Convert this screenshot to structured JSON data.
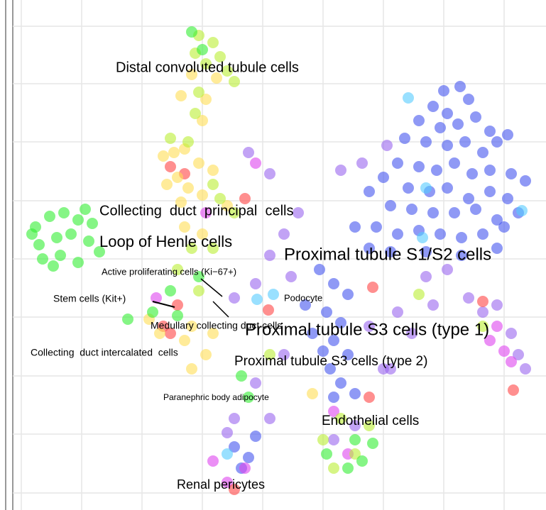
{
  "chart_data": {
    "type": "scatter",
    "xlim": [
      18,
      765
    ],
    "ylim": [
      716,
      3
    ],
    "xticks": [
      30,
      115,
      200,
      285,
      370,
      455,
      540,
      625,
      710
    ],
    "yticks": [
      37,
      118,
      200,
      283,
      365,
      447,
      530,
      612,
      695
    ],
    "grid": true,
    "series": [
      {
        "color": "#4455ee",
        "x": [
          625,
          648,
          610,
          630,
          660,
          590,
          620,
          645,
          670,
          690,
          700,
          715,
          570,
          600,
          630,
          655,
          680,
          560,
          590,
          615,
          640,
          665,
          690,
          720,
          740,
          540,
          575,
          605,
          630,
          660,
          690,
          715,
          520,
          550,
          580,
          610,
          640,
          670,
          700,
          730,
          500,
          530,
          560,
          590,
          620,
          650,
          680,
          710,
          520,
          550,
          600,
          650,
          700,
          450,
          470,
          490,
          430,
          460,
          480,
          440,
          470,
          455,
          490,
          465,
          480,
          500,
          470,
          350,
          340,
          330,
          360
        ],
        "y": [
          128,
          122,
          150,
          160,
          140,
          170,
          180,
          175,
          165,
          185,
          200,
          190,
          195,
          200,
          205,
          200,
          215,
          230,
          235,
          240,
          230,
          245,
          240,
          245,
          255,
          250,
          265,
          270,
          265,
          280,
          270,
          280,
          270,
          290,
          295,
          300,
          300,
          295,
          310,
          300,
          320,
          320,
          330,
          325,
          330,
          335,
          330,
          320,
          350,
          355,
          355,
          360,
          350,
          380,
          400,
          415,
          430,
          440,
          455,
          470,
          480,
          495,
          500,
          520,
          540,
          555,
          560,
          645,
          660,
          630,
          615
        ]
      },
      {
        "color": "#9966ee",
        "x": [
          480,
          510,
          545,
          380,
          350,
          420,
          400,
          380,
          410,
          360,
          330,
          600,
          630,
          660,
          680,
          700,
          720,
          730,
          740,
          610,
          560,
          520,
          540,
          400,
          360,
          330,
          320,
          380,
          470,
          500,
          550,
          580
        ],
        "y": [
          240,
          230,
          205,
          245,
          215,
          300,
          330,
          360,
          390,
          400,
          420,
          390,
          380,
          420,
          440,
          430,
          470,
          500,
          520,
          430,
          440,
          460,
          520,
          500,
          540,
          590,
          610,
          590,
          620,
          600,
          520,
          470
        ]
      },
      {
        "color": "#dd44ee",
        "x": [
          690,
          710,
          720,
          700,
          345,
          320,
          300,
          470,
          360,
          290,
          220,
          490
        ],
        "y": [
          480,
          495,
          510,
          460,
          660,
          680,
          650,
          580,
          230,
          300,
          420,
          640
        ]
      },
      {
        "color": "#ff4444",
        "x": [
          525,
          378,
          723,
          240,
          260,
          230,
          240,
          250,
          330,
          345,
          520,
          680
        ],
        "y": [
          405,
          437,
          550,
          235,
          245,
          460,
          470,
          430,
          690,
          280,
          560,
          425
        ]
      },
      {
        "color": "#ffdd55",
        "x": [
          230,
          245,
          260,
          280,
          250,
          265,
          235,
          300,
          285,
          255,
          260,
          285,
          210,
          225,
          270,
          260,
          300,
          270,
          290,
          285,
          290,
          270,
          255,
          305,
          440,
          320
        ],
        "y": [
          220,
          215,
          210,
          230,
          250,
          265,
          260,
          240,
          275,
          285,
          320,
          330,
          450,
          470,
          460,
          480,
          470,
          520,
          500,
          170,
          140,
          105,
          135,
          110,
          555,
          290
        ]
      },
      {
        "color": "#bbee33",
        "x": [
          280,
          300,
          275,
          290,
          310,
          320,
          330,
          280,
          275,
          240,
          265,
          300,
          310,
          330,
          270,
          300,
          250,
          280,
          455,
          500,
          520,
          470,
          380,
          480,
          590,
          680
        ],
        "y": [
          50,
          60,
          75,
          90,
          80,
          100,
          115,
          130,
          160,
          195,
          200,
          260,
          280,
          300,
          350,
          350,
          380,
          410,
          620,
          640,
          600,
          660,
          500,
          590,
          415,
          460
        ]
      },
      {
        "color": "#33ee33",
        "x": [
          50,
          70,
          90,
          110,
          130,
          55,
          80,
          100,
          125,
          60,
          85,
          110,
          140,
          120,
          45,
          75,
          240,
          250,
          215,
          280,
          500,
          490,
          460,
          510,
          525,
          270,
          285,
          180,
          340,
          350
        ],
        "y": [
          320,
          305,
          300,
          310,
          315,
          345,
          335,
          330,
          340,
          365,
          360,
          370,
          355,
          295,
          330,
          375,
          410,
          445,
          440,
          390,
          620,
          660,
          640,
          650,
          625,
          45,
          70,
          450,
          530,
          560
        ]
      },
      {
        "color": "#55ccff",
        "x": [
          575,
          385,
          362,
          600,
          735,
          320,
          595
        ],
        "y": [
          138,
          415,
          422,
          265,
          297,
          640,
          335
        ]
      }
    ],
    "annotations": [
      {
        "text": "Distal convoluted tubule cells",
        "x": 163,
        "y": 96
      },
      {
        "text": "Collecting  duct  principal  cells",
        "x": 140,
        "y": 298
      },
      {
        "text": "Loop of Henle cells",
        "x": 140,
        "y": 342
      },
      {
        "text": "Proximal tubule S1/S2 cells",
        "x": 400,
        "y": 360
      },
      {
        "text": "Active proliferating cells (Ki−67+)",
        "x": 143,
        "y": 384
      },
      {
        "text": "Stem cells (Kit+)",
        "x": 75,
        "y": 422
      },
      {
        "text": "Podocyte",
        "x": 400,
        "y": 421
      },
      {
        "text": "Medullary collecting duct cells",
        "x": 212,
        "y": 460
      },
      {
        "text": "Proximal tubule S3 cells (type 1)",
        "x": 345,
        "y": 466
      },
      {
        "text": "Collecting  duct intercalated  cells",
        "x": 43,
        "y": 498
      },
      {
        "text": "Proximal tubule S3 cells (type 2)",
        "x": 330,
        "y": 510
      },
      {
        "text": "Paranephric body adipocyte",
        "x": 230,
        "y": 561
      },
      {
        "text": "Endothelial cells",
        "x": 453,
        "y": 594
      },
      {
        "text": "Renal pericytes",
        "x": 249,
        "y": 684
      }
    ]
  }
}
